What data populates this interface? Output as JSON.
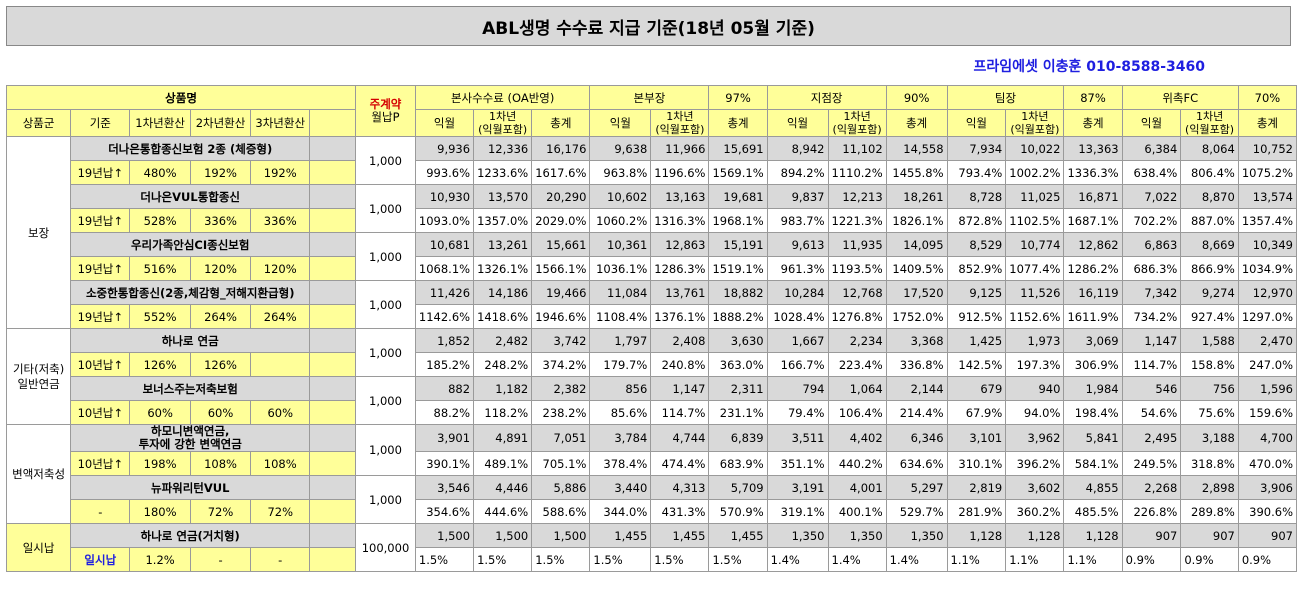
{
  "title": "ABL생명 수수료 지급 기준(18년 05월 기준)",
  "contact": "프라임에셋 이충훈 010-8588-3460",
  "header": {
    "product_name": "상품명",
    "main_contract": "주계약",
    "monthly_premium": "월납P",
    "product_group": "상품군",
    "basis": "기준",
    "y1": "1차년환산",
    "y2": "2차년환산",
    "y3": "3차년환산",
    "groups": [
      {
        "name": "본사수수료 (OA반영)",
        "pct": ""
      },
      {
        "name": "본부장",
        "pct": "97%"
      },
      {
        "name": "지점장",
        "pct": "90%"
      },
      {
        "name": "팀장",
        "pct": "87%"
      },
      {
        "name": "위촉FC",
        "pct": "70%"
      }
    ],
    "sub_month": "익월",
    "sub_first_a": "1차년",
    "sub_first_b": "(익월포함)",
    "sub_total": "총계"
  },
  "categories": {
    "insurance": "보장",
    "etc_a": "기타(저축)",
    "etc_b": "일반연금",
    "variable": "변액저축성",
    "lump": "일시납"
  },
  "products": [
    {
      "name": "더나은통합종신보험 2종 (체증형)",
      "basis": "19년납↑",
      "y1": "480%",
      "y2": "192%",
      "y3": "192%",
      "premium": "1,000",
      "amt": [
        "9,936",
        "12,336",
        "16,176",
        "9,638",
        "11,966",
        "15,691",
        "8,942",
        "11,102",
        "14,558",
        "7,934",
        "10,022",
        "13,363",
        "6,384",
        "8,064",
        "10,752"
      ],
      "pct": [
        "993.6%",
        "1233.6%",
        "1617.6%",
        "963.8%",
        "1196.6%",
        "1569.1%",
        "894.2%",
        "1110.2%",
        "1455.8%",
        "793.4%",
        "1002.2%",
        "1336.3%",
        "638.4%",
        "806.4%",
        "1075.2%"
      ]
    },
    {
      "name": "더나은VUL통합종신",
      "basis": "19년납↑",
      "y1": "528%",
      "y2": "336%",
      "y3": "336%",
      "premium": "1,000",
      "amt": [
        "10,930",
        "13,570",
        "20,290",
        "10,602",
        "13,163",
        "19,681",
        "9,837",
        "12,213",
        "18,261",
        "8,728",
        "11,025",
        "16,871",
        "7,022",
        "8,870",
        "13,574"
      ],
      "pct": [
        "1093.0%",
        "1357.0%",
        "2029.0%",
        "1060.2%",
        "1316.3%",
        "1968.1%",
        "983.7%",
        "1221.3%",
        "1826.1%",
        "872.8%",
        "1102.5%",
        "1687.1%",
        "702.2%",
        "887.0%",
        "1357.4%"
      ]
    },
    {
      "name": "우리가족안심CI종신보험",
      "basis": "19년납↑",
      "y1": "516%",
      "y2": "120%",
      "y3": "120%",
      "premium": "1,000",
      "amt": [
        "10,681",
        "13,261",
        "15,661",
        "10,361",
        "12,863",
        "15,191",
        "9,613",
        "11,935",
        "14,095",
        "8,529",
        "10,774",
        "12,862",
        "6,863",
        "8,669",
        "10,349"
      ],
      "pct": [
        "1068.1%",
        "1326.1%",
        "1566.1%",
        "1036.1%",
        "1286.3%",
        "1519.1%",
        "961.3%",
        "1193.5%",
        "1409.5%",
        "852.9%",
        "1077.4%",
        "1286.2%",
        "686.3%",
        "866.9%",
        "1034.9%"
      ]
    },
    {
      "name": "소중한통합종신(2종,체감형_저해지환급형)",
      "basis": "19년납↑",
      "y1": "552%",
      "y2": "264%",
      "y3": "264%",
      "premium": "1,000",
      "amt": [
        "11,426",
        "14,186",
        "19,466",
        "11,084",
        "13,761",
        "18,882",
        "10,284",
        "12,768",
        "17,520",
        "9,125",
        "11,526",
        "16,119",
        "7,342",
        "9,274",
        "12,970"
      ],
      "pct": [
        "1142.6%",
        "1418.6%",
        "1946.6%",
        "1108.4%",
        "1376.1%",
        "1888.2%",
        "1028.4%",
        "1276.8%",
        "1752.0%",
        "912.5%",
        "1152.6%",
        "1611.9%",
        "734.2%",
        "927.4%",
        "1297.0%"
      ]
    },
    {
      "name": "하나로 연금",
      "basis": "10년납↑",
      "y1": "126%",
      "y2": "126%",
      "y3": "",
      "premium": "1,000",
      "amt": [
        "1,852",
        "2,482",
        "3,742",
        "1,797",
        "2,408",
        "3,630",
        "1,667",
        "2,234",
        "3,368",
        "1,425",
        "1,973",
        "3,069",
        "1,147",
        "1,588",
        "2,470"
      ],
      "pct": [
        "185.2%",
        "248.2%",
        "374.2%",
        "179.7%",
        "240.8%",
        "363.0%",
        "166.7%",
        "223.4%",
        "336.8%",
        "142.5%",
        "197.3%",
        "306.9%",
        "114.7%",
        "158.8%",
        "247.0%"
      ]
    },
    {
      "name": "보너스주는저축보험",
      "basis": "10년납↑",
      "y1": "60%",
      "y2": "60%",
      "y3": "60%",
      "premium": "1,000",
      "amt": [
        "882",
        "1,182",
        "2,382",
        "856",
        "1,147",
        "2,311",
        "794",
        "1,064",
        "2,144",
        "679",
        "940",
        "1,984",
        "546",
        "756",
        "1,596"
      ],
      "pct": [
        "88.2%",
        "118.2%",
        "238.2%",
        "85.6%",
        "114.7%",
        "231.1%",
        "79.4%",
        "106.4%",
        "214.4%",
        "67.9%",
        "94.0%",
        "198.4%",
        "54.6%",
        "75.6%",
        "159.6%"
      ]
    },
    {
      "name_a": "하모니변액연금,",
      "name_b": "투자에 강한 변액연금",
      "basis": "10년납↑",
      "y1": "198%",
      "y2": "108%",
      "y3": "108%",
      "premium": "1,000",
      "amt": [
        "3,901",
        "4,891",
        "7,051",
        "3,784",
        "4,744",
        "6,839",
        "3,511",
        "4,402",
        "6,346",
        "3,101",
        "3,962",
        "5,841",
        "2,495",
        "3,188",
        "4,700"
      ],
      "pct": [
        "390.1%",
        "489.1%",
        "705.1%",
        "378.4%",
        "474.4%",
        "683.9%",
        "351.1%",
        "440.2%",
        "634.6%",
        "310.1%",
        "396.2%",
        "584.1%",
        "249.5%",
        "318.8%",
        "470.0%"
      ]
    },
    {
      "name": "뉴파워리턴VUL",
      "basis": "-",
      "y1": "180%",
      "y2": "72%",
      "y3": "72%",
      "premium": "1,000",
      "amt": [
        "3,546",
        "4,446",
        "5,886",
        "3,440",
        "4,313",
        "5,709",
        "3,191",
        "4,001",
        "5,297",
        "2,819",
        "3,602",
        "4,855",
        "2,268",
        "2,898",
        "3,906"
      ],
      "pct": [
        "354.6%",
        "444.6%",
        "588.6%",
        "344.0%",
        "431.3%",
        "570.9%",
        "319.1%",
        "400.1%",
        "529.7%",
        "281.9%",
        "360.2%",
        "485.5%",
        "226.8%",
        "289.8%",
        "390.6%"
      ]
    },
    {
      "name": "하나로 연금(거치형)",
      "basis": "일시납",
      "y1": "1.2%",
      "y2": "-",
      "y3": "-",
      "premium": "100,000",
      "amt": [
        "1,500",
        "1,500",
        "1,500",
        "1,455",
        "1,455",
        "1,455",
        "1,350",
        "1,350",
        "1,350",
        "1,128",
        "1,128",
        "1,128",
        "907",
        "907",
        "907"
      ],
      "pct": [
        "1.5%",
        "1.5%",
        "1.5%",
        "1.5%",
        "1.5%",
        "1.5%",
        "1.4%",
        "1.4%",
        "1.4%",
        "1.1%",
        "1.1%",
        "1.1%",
        "0.9%",
        "0.9%",
        "0.9%"
      ]
    }
  ]
}
